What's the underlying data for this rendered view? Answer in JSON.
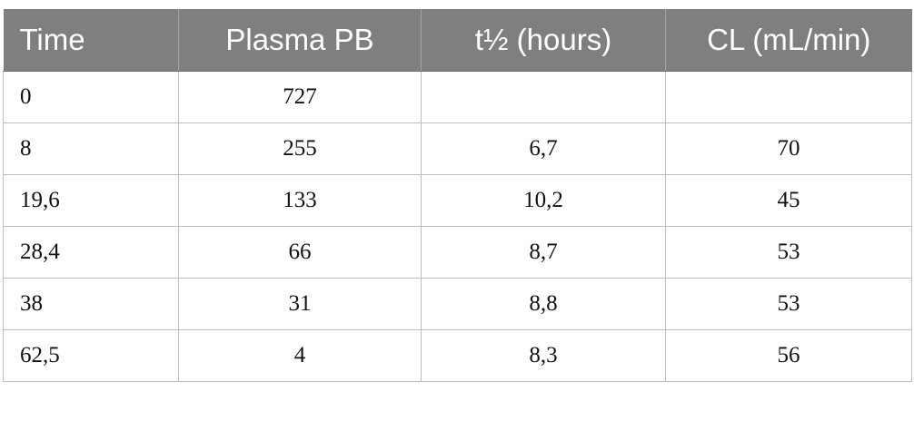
{
  "table": {
    "headers": [
      "Time",
      "Plasma PB",
      "t½ (hours)",
      "CL (mL/min)"
    ],
    "rows": [
      [
        "0",
        "727",
        "",
        ""
      ],
      [
        "8",
        "255",
        "6,7",
        "70"
      ],
      [
        "19,6",
        "133",
        "10,2",
        "45"
      ],
      [
        "28,4",
        "66",
        "8,7",
        "53"
      ],
      [
        "38",
        "31",
        "8,8",
        "53"
      ],
      [
        "62,5",
        "4",
        "8,3",
        "56"
      ]
    ]
  }
}
